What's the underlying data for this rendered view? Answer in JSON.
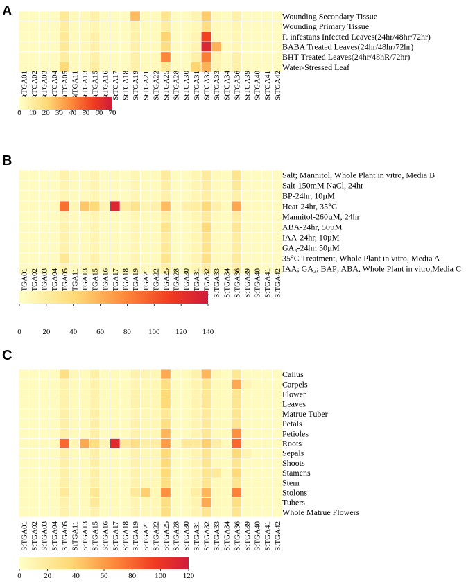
{
  "columns": [
    "StTGA01",
    "StTGA02",
    "StTGA03",
    "StTGA04",
    "StTGA05",
    "StTGA11",
    "StTGA13",
    "StTGA15",
    "StTGA16",
    "StTGA17",
    "StTGA18",
    "StTGA19",
    "StTGA21",
    "StTGA22",
    "StTGA25",
    "StTGA28",
    "StTGA30",
    "StTGA31",
    "StTGA32",
    "StTGA33",
    "StTGA34",
    "StTGA36",
    "StTGA39",
    "StTGA40",
    "StTGA41",
    "StTGA42"
  ],
  "colors": {
    "low": "#ffffc8",
    "mid1": "#fed976",
    "mid2": "#fd8d3c",
    "mid3": "#f03b20",
    "high": "#d01c3a",
    "grid": "#ffffff"
  },
  "chart_data": [
    {
      "panel": "A",
      "type": "heatmap",
      "rows": [
        "Wounding Secondary Tissue",
        "Wounding Primary Tissue",
        "P. infestans Infected Leaves(24hr/48hr/72hr)",
        "BABA Treated Leaves(24hr/48hr/72hr)",
        "BHT Treated Leaves(24hr/48hR/72hr)",
        "Water-Stressed Leaf"
      ],
      "colorbar": {
        "min": 0,
        "max": 70,
        "ticks": [
          "0",
          "10",
          "20",
          "30",
          "40",
          "50",
          "60",
          "70"
        ]
      },
      "values": [
        [
          2,
          2,
          2,
          2,
          12,
          4,
          4,
          8,
          2,
          2,
          2,
          28,
          3,
          3,
          14,
          2,
          2,
          6,
          24,
          3,
          2,
          8,
          2,
          2,
          2,
          2
        ],
        [
          2,
          2,
          2,
          2,
          10,
          3,
          3,
          6,
          2,
          2,
          2,
          7,
          3,
          3,
          10,
          2,
          2,
          4,
          18,
          3,
          2,
          5,
          2,
          2,
          2,
          2
        ],
        [
          2,
          2,
          2,
          2,
          12,
          3,
          4,
          8,
          2,
          2,
          2,
          8,
          3,
          3,
          22,
          2,
          2,
          6,
          55,
          3,
          2,
          5,
          2,
          2,
          2,
          2
        ],
        [
          2,
          2,
          2,
          2,
          12,
          3,
          4,
          8,
          2,
          2,
          2,
          8,
          3,
          3,
          18,
          2,
          2,
          6,
          65,
          30,
          2,
          5,
          2,
          2,
          2,
          2
        ],
        [
          2,
          2,
          2,
          2,
          10,
          3,
          3,
          8,
          2,
          2,
          2,
          8,
          3,
          3,
          40,
          2,
          2,
          8,
          42,
          6,
          2,
          8,
          2,
          2,
          2,
          2
        ],
        [
          2,
          2,
          2,
          2,
          20,
          3,
          3,
          10,
          2,
          2,
          2,
          8,
          3,
          3,
          12,
          2,
          2,
          22,
          30,
          6,
          2,
          8,
          2,
          2,
          2,
          2
        ]
      ]
    },
    {
      "panel": "B",
      "type": "heatmap",
      "rows": [
        "Salt; Mannitol, Whole Plant in vitro, Media B",
        "Salt-150mM NaCl, 24hr",
        "BP-24hr, 10µM",
        "Heat-24hr, 35°C",
        "Mannitol-260µM, 24hr",
        "ABA-24hr, 50µM",
        "IAA-24hr, 10µM",
        "GA₃-24hr, 50µM",
        "35°C Treatment, Whole Plant in vitro, Media A",
        "IAA; GA₃; BAP; ABA, Whole Plant in vitro,Media C"
      ],
      "colorbar": {
        "min": 0,
        "max": 140,
        "ticks": [
          "0",
          "20",
          "40",
          "60",
          "80",
          "100",
          "120",
          "140"
        ]
      },
      "values": [
        [
          4,
          4,
          4,
          4,
          14,
          6,
          6,
          12,
          4,
          6,
          4,
          10,
          6,
          6,
          22,
          4,
          4,
          10,
          22,
          6,
          4,
          30,
          4,
          4,
          4,
          4
        ],
        [
          4,
          4,
          4,
          4,
          12,
          6,
          6,
          12,
          4,
          6,
          4,
          10,
          6,
          6,
          18,
          4,
          4,
          10,
          20,
          6,
          4,
          24,
          4,
          4,
          4,
          4
        ],
        [
          4,
          4,
          4,
          4,
          10,
          6,
          6,
          10,
          4,
          6,
          4,
          10,
          6,
          6,
          16,
          4,
          4,
          10,
          18,
          6,
          4,
          16,
          4,
          4,
          4,
          4
        ],
        [
          6,
          6,
          6,
          6,
          90,
          10,
          50,
          40,
          12,
          130,
          20,
          30,
          12,
          15,
          55,
          6,
          15,
          20,
          40,
          15,
          6,
          65,
          6,
          6,
          6,
          6
        ],
        [
          4,
          4,
          4,
          4,
          12,
          6,
          6,
          12,
          4,
          6,
          4,
          10,
          6,
          6,
          18,
          4,
          4,
          10,
          22,
          6,
          4,
          20,
          4,
          4,
          4,
          4
        ],
        [
          4,
          4,
          4,
          4,
          14,
          6,
          6,
          12,
          4,
          6,
          4,
          10,
          6,
          6,
          30,
          4,
          4,
          10,
          40,
          6,
          4,
          26,
          4,
          4,
          4,
          4
        ],
        [
          4,
          4,
          4,
          4,
          14,
          6,
          6,
          12,
          4,
          6,
          4,
          10,
          6,
          6,
          22,
          4,
          4,
          10,
          30,
          6,
          4,
          20,
          4,
          4,
          4,
          4
        ],
        [
          4,
          4,
          4,
          4,
          14,
          6,
          6,
          12,
          4,
          6,
          4,
          10,
          6,
          6,
          24,
          4,
          4,
          10,
          30,
          6,
          4,
          20,
          4,
          4,
          4,
          4
        ],
        [
          4,
          4,
          4,
          4,
          26,
          6,
          6,
          14,
          4,
          6,
          4,
          12,
          6,
          6,
          30,
          4,
          4,
          12,
          34,
          6,
          4,
          22,
          4,
          4,
          4,
          4
        ],
        [
          4,
          4,
          4,
          4,
          12,
          6,
          6,
          12,
          4,
          6,
          4,
          10,
          6,
          6,
          18,
          4,
          4,
          10,
          20,
          6,
          4,
          18,
          4,
          4,
          4,
          4
        ]
      ]
    },
    {
      "panel": "C",
      "type": "heatmap",
      "rows": [
        "Callus",
        "Carpels",
        "Flower",
        "Leaves",
        "Matrue Tuber",
        "Petals",
        "Petioles",
        "Roots",
        "Sepals",
        "Shoots",
        "Stamens",
        "Stem",
        "Stolons",
        "Tubers",
        "Whole Matrue Flowers"
      ],
      "colorbar": {
        "min": 0,
        "max": 120,
        "ticks": [
          "0",
          "20",
          "40",
          "60",
          "80",
          "100",
          "120"
        ]
      },
      "values": [
        [
          4,
          4,
          4,
          4,
          30,
          8,
          6,
          14,
          4,
          6,
          4,
          12,
          10,
          8,
          55,
          4,
          6,
          12,
          50,
          8,
          4,
          22,
          4,
          4,
          4,
          4
        ],
        [
          4,
          4,
          4,
          4,
          12,
          6,
          6,
          12,
          4,
          6,
          4,
          10,
          8,
          8,
          30,
          4,
          4,
          10,
          25,
          6,
          4,
          55,
          10,
          4,
          4,
          4
        ],
        [
          4,
          4,
          4,
          4,
          12,
          6,
          6,
          12,
          4,
          6,
          4,
          12,
          8,
          8,
          35,
          4,
          4,
          10,
          22,
          6,
          4,
          25,
          4,
          4,
          4,
          4
        ],
        [
          4,
          4,
          4,
          4,
          12,
          6,
          6,
          12,
          4,
          6,
          4,
          12,
          8,
          8,
          35,
          4,
          4,
          10,
          22,
          6,
          4,
          25,
          4,
          4,
          4,
          4
        ],
        [
          4,
          4,
          4,
          4,
          14,
          6,
          6,
          14,
          4,
          6,
          4,
          10,
          8,
          8,
          22,
          4,
          4,
          10,
          20,
          6,
          4,
          25,
          4,
          4,
          4,
          4
        ],
        [
          4,
          4,
          4,
          4,
          14,
          6,
          6,
          14,
          4,
          6,
          4,
          12,
          8,
          8,
          30,
          4,
          4,
          10,
          20,
          6,
          4,
          25,
          4,
          4,
          4,
          4
        ],
        [
          4,
          4,
          4,
          4,
          14,
          6,
          6,
          14,
          4,
          6,
          4,
          12,
          8,
          8,
          50,
          4,
          4,
          10,
          22,
          6,
          4,
          65,
          4,
          4,
          4,
          4
        ],
        [
          6,
          6,
          6,
          6,
          80,
          10,
          55,
          30,
          10,
          110,
          20,
          30,
          15,
          15,
          60,
          6,
          20,
          20,
          40,
          15,
          6,
          80,
          6,
          6,
          6,
          6
        ],
        [
          4,
          4,
          4,
          4,
          14,
          6,
          6,
          14,
          4,
          6,
          4,
          12,
          8,
          8,
          35,
          4,
          4,
          10,
          25,
          6,
          4,
          35,
          10,
          4,
          4,
          4
        ],
        [
          4,
          4,
          4,
          4,
          14,
          6,
          6,
          14,
          4,
          6,
          4,
          12,
          8,
          8,
          35,
          4,
          4,
          10,
          25,
          6,
          4,
          25,
          4,
          4,
          4,
          4
        ],
        [
          4,
          4,
          4,
          4,
          14,
          6,
          6,
          14,
          4,
          6,
          4,
          12,
          8,
          8,
          35,
          4,
          4,
          10,
          25,
          20,
          4,
          35,
          4,
          4,
          4,
          4
        ],
        [
          4,
          4,
          4,
          4,
          14,
          6,
          6,
          14,
          4,
          6,
          4,
          12,
          8,
          8,
          30,
          4,
          4,
          10,
          25,
          6,
          4,
          25,
          4,
          4,
          4,
          4
        ],
        [
          4,
          4,
          4,
          4,
          20,
          6,
          6,
          22,
          4,
          6,
          4,
          20,
          40,
          8,
          65,
          4,
          4,
          15,
          50,
          6,
          4,
          70,
          4,
          4,
          4,
          4
        ],
        [
          4,
          4,
          4,
          4,
          12,
          6,
          6,
          20,
          4,
          6,
          4,
          10,
          8,
          8,
          30,
          4,
          4,
          10,
          55,
          6,
          4,
          30,
          4,
          4,
          4,
          4
        ],
        [
          4,
          4,
          4,
          4,
          12,
          6,
          6,
          12,
          4,
          6,
          4,
          10,
          8,
          8,
          30,
          4,
          4,
          10,
          25,
          6,
          4,
          25,
          4,
          4,
          4,
          4
        ]
      ]
    }
  ]
}
